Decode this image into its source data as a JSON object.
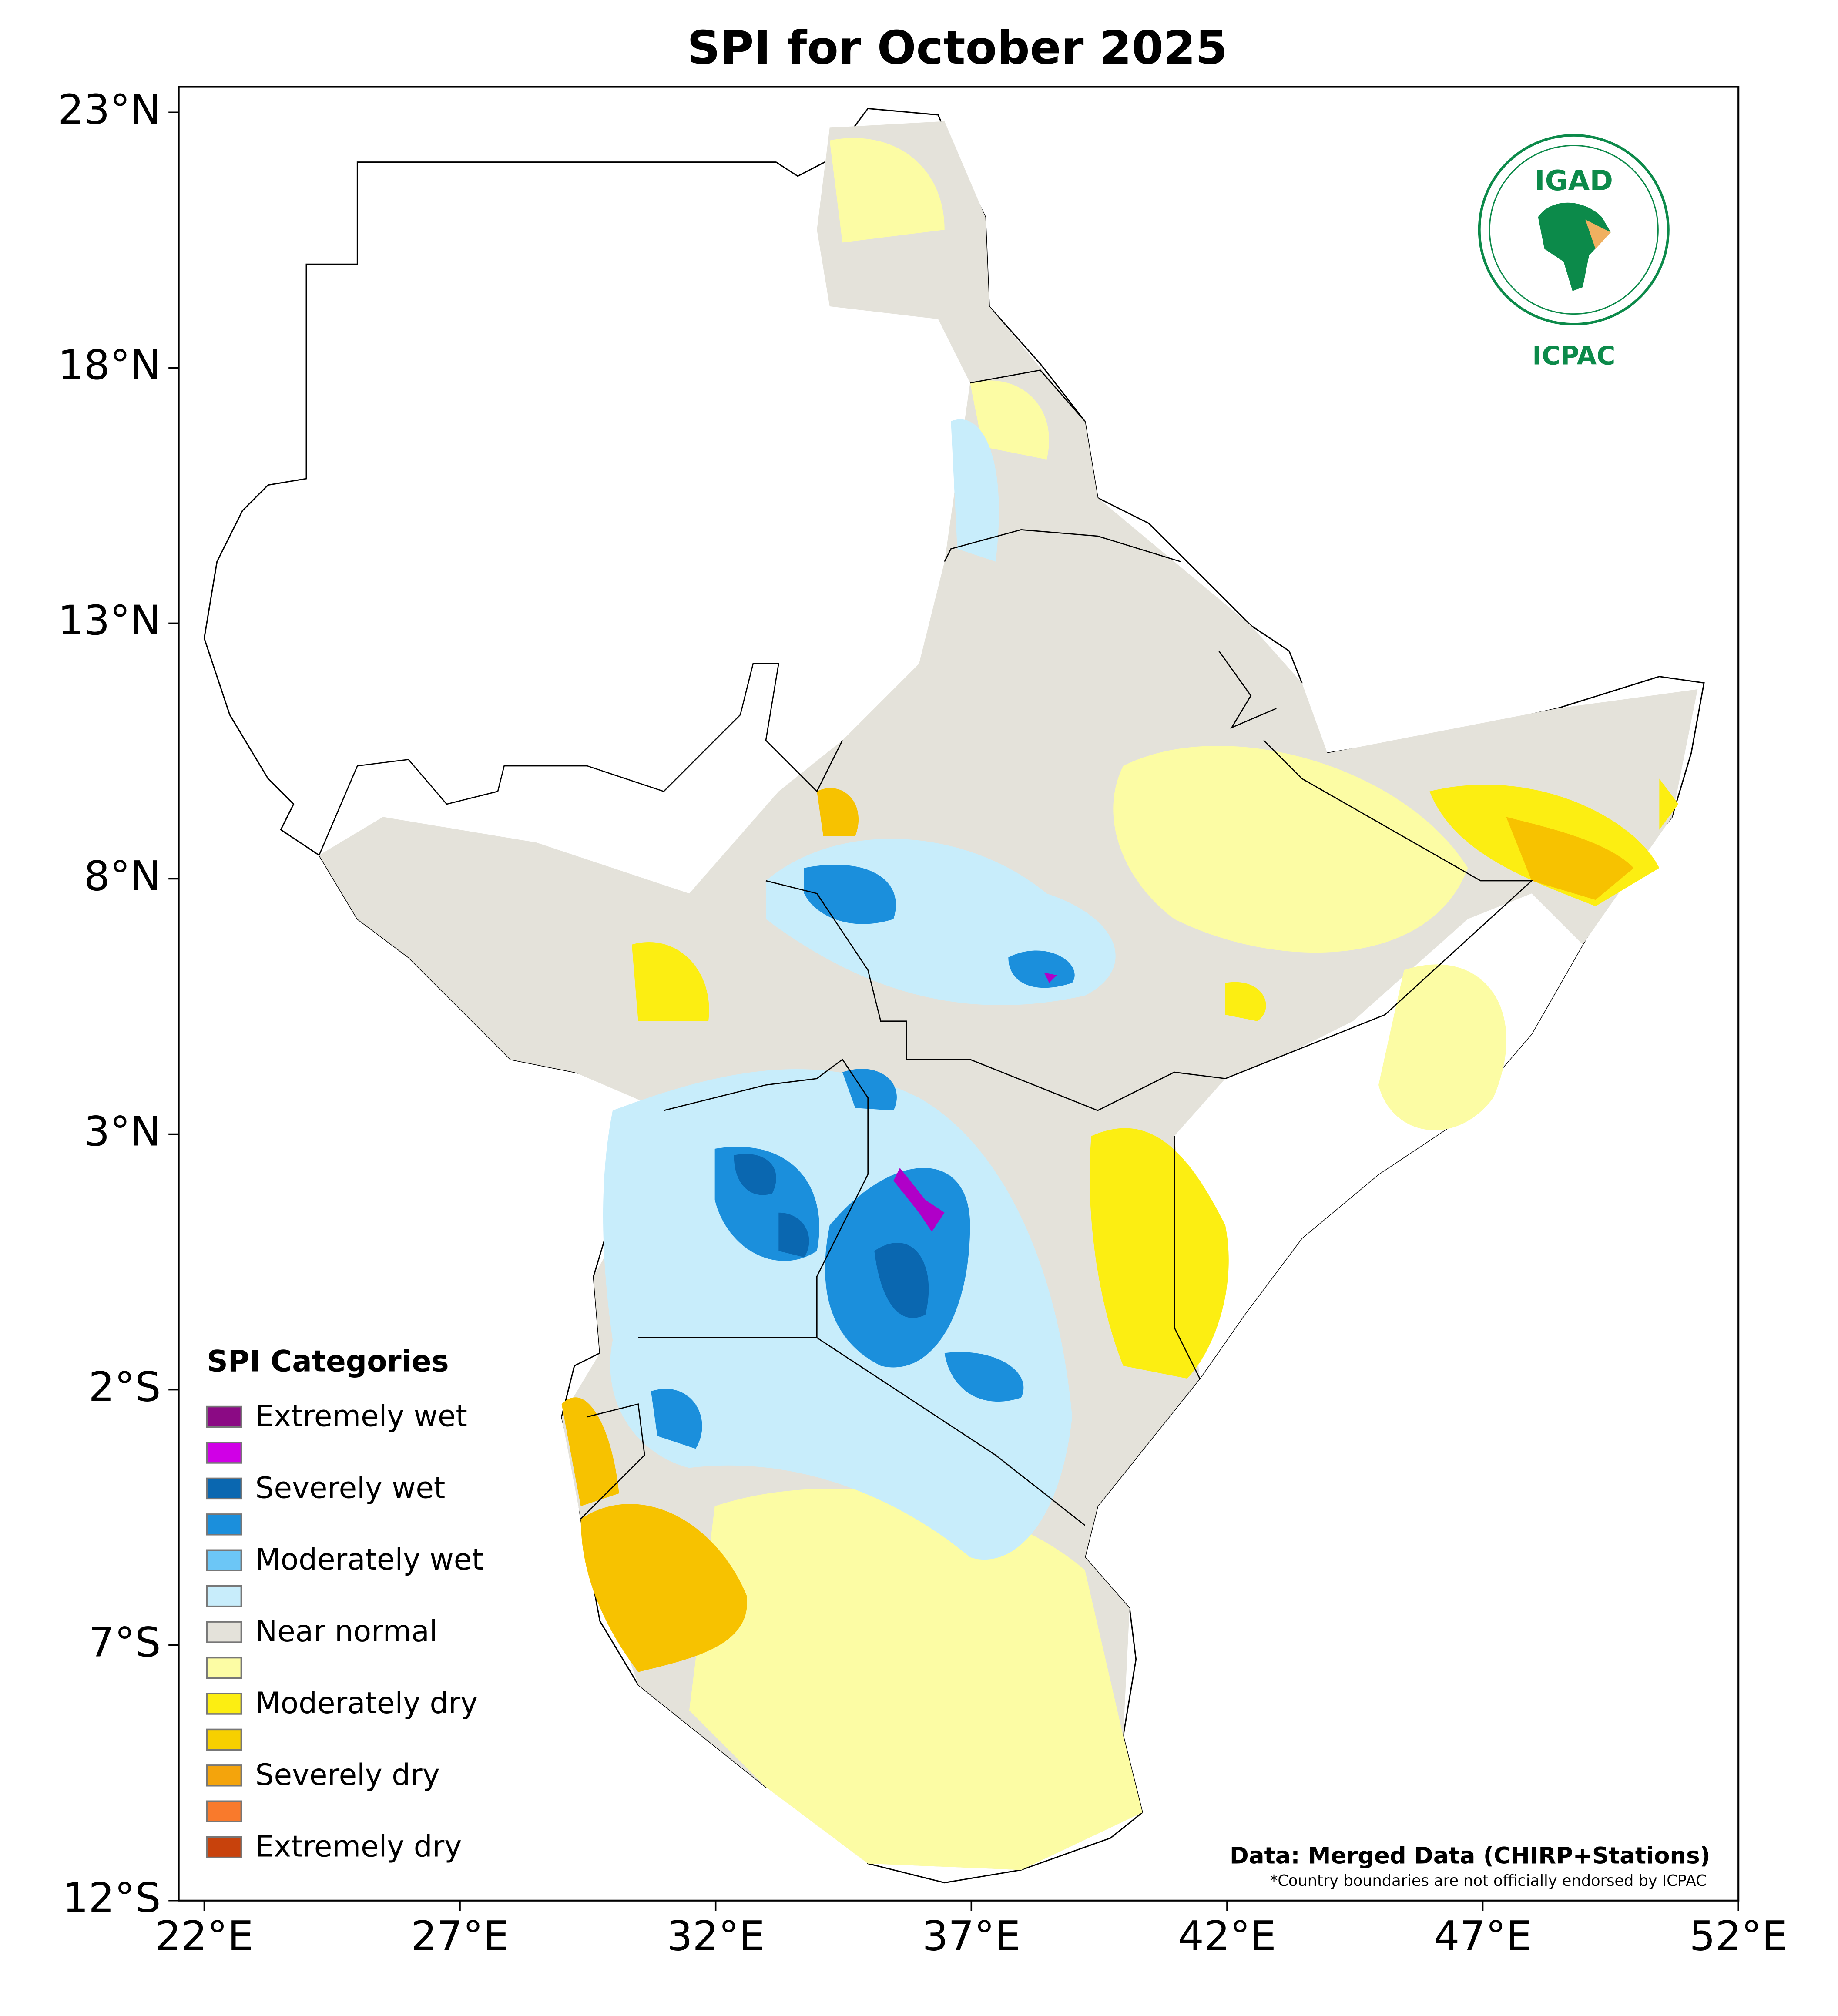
{
  "map": {
    "title": "SPI for October 2025",
    "xlim": [
      21.5,
      52
    ],
    "ylim": [
      -12,
      23.5
    ],
    "xticks": [
      {
        "value": 22,
        "label": "22°E"
      },
      {
        "value": 27,
        "label": "27°E"
      },
      {
        "value": 32,
        "label": "32°E"
      },
      {
        "value": 37,
        "label": "37°E"
      },
      {
        "value": 42,
        "label": "42°E"
      },
      {
        "value": 47,
        "label": "47°E"
      },
      {
        "value": 52,
        "label": "52°E"
      }
    ],
    "yticks": [
      {
        "value": 23,
        "label": "23°N"
      },
      {
        "value": 18,
        "label": "18°N"
      },
      {
        "value": 13,
        "label": "13°N"
      },
      {
        "value": 8,
        "label": "8°N"
      },
      {
        "value": 3,
        "label": "3°N"
      },
      {
        "value": -2,
        "label": "2°S"
      },
      {
        "value": -7,
        "label": "7°S"
      },
      {
        "value": -12,
        "label": "12°S"
      }
    ],
    "legend": {
      "title": "SPI Categories",
      "items": [
        {
          "label": "Extremely wet",
          "color": "#8b0a84"
        },
        {
          "label": null,
          "color": "#d000e6"
        },
        {
          "label": "Severely wet",
          "color": "#0a67b0"
        },
        {
          "label": null,
          "color": "#1b8fdc"
        },
        {
          "label": "Moderately wet",
          "color": "#6cc6f6"
        },
        {
          "label": null,
          "color": "#c8edfb"
        },
        {
          "label": "Near normal",
          "color": "#e4e2da"
        },
        {
          "label": null,
          "color": "#fcfca4"
        },
        {
          "label": "Moderately dry",
          "color": "#fcee12"
        },
        {
          "label": null,
          "color": "#f7d000"
        },
        {
          "label": "Severely dry",
          "color": "#f4a40c"
        },
        {
          "label": null,
          "color": "#f97a2c"
        },
        {
          "label": "Extremely dry",
          "color": "#c8420c"
        }
      ]
    },
    "source": "Data: Merged Data (CHIRP+Stations)",
    "disclaimer": "*Country boundaries are not officially endorsed by ICPAC",
    "logo": {
      "top": "IGAD",
      "bottom": "ICPAC"
    }
  }
}
